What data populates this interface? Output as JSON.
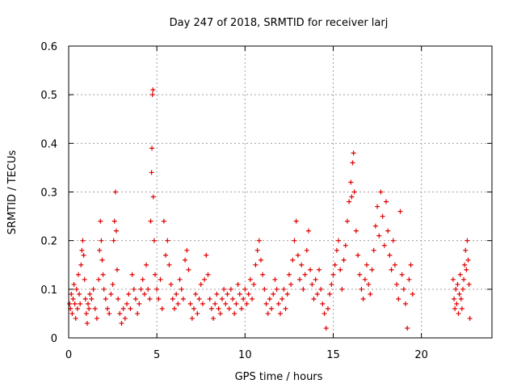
{
  "chart_data": {
    "type": "scatter",
    "title": "Day 247 of 2018, SRMTID for receiver larj",
    "xlabel": "GPS time / hours",
    "ylabel": "SRMTID / TECUs",
    "xlim": [
      0,
      24
    ],
    "ylim": [
      0,
      0.6
    ],
    "xticks": [
      0,
      5,
      10,
      15,
      20
    ],
    "yticks": [
      0,
      0.1,
      0.2,
      0.3,
      0.4,
      0.5,
      0.6
    ],
    "xtick_labels": [
      "0",
      "5",
      "10",
      "15",
      "20"
    ],
    "ytick_labels": [
      "0",
      "0.1",
      "0.2",
      "0.3",
      "0.4",
      "0.5",
      "0.6"
    ],
    "grid": true,
    "marker": "plus",
    "color": "#e00000",
    "series": [
      {
        "name": "SRMTID",
        "points": [
          [
            0.05,
            0.07
          ],
          [
            0.1,
            0.06
          ],
          [
            0.15,
            0.09
          ],
          [
            0.2,
            0.05
          ],
          [
            0.25,
            0.08
          ],
          [
            0.3,
            0.11
          ],
          [
            0.35,
            0.07
          ],
          [
            0.4,
            0.04
          ],
          [
            0.45,
            0.1
          ],
          [
            0.5,
            0.06
          ],
          [
            0.55,
            0.13
          ],
          [
            0.6,
            0.09
          ],
          [
            0.65,
            0.07
          ],
          [
            0.7,
            0.15
          ],
          [
            0.75,
            0.18
          ],
          [
            0.8,
            0.2
          ],
          [
            0.85,
            0.17
          ],
          [
            0.9,
            0.12
          ],
          [
            0.95,
            0.08
          ],
          [
            1.0,
            0.05
          ],
          [
            1.05,
            0.03
          ],
          [
            1.1,
            0.07
          ],
          [
            1.15,
            0.06
          ],
          [
            1.2,
            0.09
          ],
          [
            1.3,
            0.08
          ],
          [
            1.4,
            0.1
          ],
          [
            1.5,
            0.06
          ],
          [
            1.6,
            0.04
          ],
          [
            1.7,
            0.12
          ],
          [
            1.75,
            0.18
          ],
          [
            1.8,
            0.24
          ],
          [
            1.85,
            0.2
          ],
          [
            1.9,
            0.16
          ],
          [
            1.95,
            0.13
          ],
          [
            2.0,
            0.1
          ],
          [
            2.1,
            0.08
          ],
          [
            2.2,
            0.06
          ],
          [
            2.3,
            0.05
          ],
          [
            2.4,
            0.09
          ],
          [
            2.5,
            0.11
          ],
          [
            2.55,
            0.2
          ],
          [
            2.6,
            0.24
          ],
          [
            2.65,
            0.3
          ],
          [
            2.7,
            0.22
          ],
          [
            2.75,
            0.14
          ],
          [
            2.8,
            0.08
          ],
          [
            2.9,
            0.05
          ],
          [
            3.0,
            0.03
          ],
          [
            3.1,
            0.06
          ],
          [
            3.2,
            0.04
          ],
          [
            3.3,
            0.07
          ],
          [
            3.4,
            0.09
          ],
          [
            3.5,
            0.06
          ],
          [
            3.6,
            0.13
          ],
          [
            3.7,
            0.1
          ],
          [
            3.8,
            0.08
          ],
          [
            3.9,
            0.05
          ],
          [
            4.0,
            0.07
          ],
          [
            4.1,
            0.1
          ],
          [
            4.2,
            0.12
          ],
          [
            4.3,
            0.09
          ],
          [
            4.4,
            0.15
          ],
          [
            4.5,
            0.1
          ],
          [
            4.6,
            0.08
          ],
          [
            4.65,
            0.24
          ],
          [
            4.7,
            0.34
          ],
          [
            4.72,
            0.39
          ],
          [
            4.75,
            0.5
          ],
          [
            4.78,
            0.51
          ],
          [
            4.8,
            0.29
          ],
          [
            4.85,
            0.2
          ],
          [
            4.9,
            0.13
          ],
          [
            5.0,
            0.1
          ],
          [
            5.1,
            0.08
          ],
          [
            5.2,
            0.12
          ],
          [
            5.3,
            0.06
          ],
          [
            5.4,
            0.24
          ],
          [
            5.5,
            0.17
          ],
          [
            5.6,
            0.2
          ],
          [
            5.7,
            0.15
          ],
          [
            5.8,
            0.11
          ],
          [
            5.9,
            0.08
          ],
          [
            6.0,
            0.06
          ],
          [
            6.1,
            0.09
          ],
          [
            6.2,
            0.07
          ],
          [
            6.3,
            0.12
          ],
          [
            6.4,
            0.1
          ],
          [
            6.5,
            0.08
          ],
          [
            6.6,
            0.16
          ],
          [
            6.7,
            0.18
          ],
          [
            6.8,
            0.14
          ],
          [
            6.9,
            0.07
          ],
          [
            7.0,
            0.04
          ],
          [
            7.1,
            0.06
          ],
          [
            7.2,
            0.09
          ],
          [
            7.3,
            0.05
          ],
          [
            7.4,
            0.08
          ],
          [
            7.5,
            0.11
          ],
          [
            7.6,
            0.07
          ],
          [
            7.7,
            0.12
          ],
          [
            7.8,
            0.17
          ],
          [
            7.9,
            0.13
          ],
          [
            8.0,
            0.08
          ],
          [
            8.1,
            0.06
          ],
          [
            8.2,
            0.04
          ],
          [
            8.3,
            0.07
          ],
          [
            8.4,
            0.09
          ],
          [
            8.5,
            0.06
          ],
          [
            8.6,
            0.05
          ],
          [
            8.7,
            0.08
          ],
          [
            8.8,
            0.1
          ],
          [
            8.9,
            0.07
          ],
          [
            9.0,
            0.09
          ],
          [
            9.1,
            0.06
          ],
          [
            9.2,
            0.1
          ],
          [
            9.3,
            0.08
          ],
          [
            9.4,
            0.05
          ],
          [
            9.5,
            0.07
          ],
          [
            9.6,
            0.11
          ],
          [
            9.7,
            0.09
          ],
          [
            9.8,
            0.06
          ],
          [
            9.9,
            0.08
          ],
          [
            10.0,
            0.1
          ],
          [
            10.1,
            0.07
          ],
          [
            10.2,
            0.09
          ],
          [
            10.3,
            0.12
          ],
          [
            10.4,
            0.08
          ],
          [
            10.5,
            0.11
          ],
          [
            10.6,
            0.15
          ],
          [
            10.7,
            0.18
          ],
          [
            10.8,
            0.2
          ],
          [
            10.9,
            0.16
          ],
          [
            11.0,
            0.13
          ],
          [
            11.1,
            0.1
          ],
          [
            11.2,
            0.07
          ],
          [
            11.3,
            0.05
          ],
          [
            11.4,
            0.08
          ],
          [
            11.5,
            0.06
          ],
          [
            11.6,
            0.09
          ],
          [
            11.7,
            0.12
          ],
          [
            11.8,
            0.1
          ],
          [
            11.9,
            0.07
          ],
          [
            12.0,
            0.05
          ],
          [
            12.1,
            0.08
          ],
          [
            12.2,
            0.1
          ],
          [
            12.3,
            0.06
          ],
          [
            12.4,
            0.09
          ],
          [
            12.5,
            0.13
          ],
          [
            12.6,
            0.11
          ],
          [
            12.7,
            0.16
          ],
          [
            12.8,
            0.2
          ],
          [
            12.9,
            0.24
          ],
          [
            13.0,
            0.17
          ],
          [
            13.1,
            0.12
          ],
          [
            13.2,
            0.15
          ],
          [
            13.3,
            0.1
          ],
          [
            13.4,
            0.13
          ],
          [
            13.5,
            0.18
          ],
          [
            13.6,
            0.22
          ],
          [
            13.7,
            0.14
          ],
          [
            13.8,
            0.11
          ],
          [
            13.9,
            0.08
          ],
          [
            14.0,
            0.12
          ],
          [
            14.1,
            0.09
          ],
          [
            14.2,
            0.14
          ],
          [
            14.3,
            0.1
          ],
          [
            14.4,
            0.07
          ],
          [
            14.5,
            0.05
          ],
          [
            14.6,
            0.02
          ],
          [
            14.7,
            0.06
          ],
          [
            14.8,
            0.09
          ],
          [
            14.9,
            0.11
          ],
          [
            15.0,
            0.13
          ],
          [
            15.1,
            0.15
          ],
          [
            15.2,
            0.18
          ],
          [
            15.3,
            0.2
          ],
          [
            15.4,
            0.14
          ],
          [
            15.5,
            0.1
          ],
          [
            15.6,
            0.16
          ],
          [
            15.7,
            0.19
          ],
          [
            15.8,
            0.24
          ],
          [
            15.9,
            0.28
          ],
          [
            16.0,
            0.32
          ],
          [
            16.05,
            0.29
          ],
          [
            16.1,
            0.36
          ],
          [
            16.15,
            0.38
          ],
          [
            16.2,
            0.3
          ],
          [
            16.3,
            0.22
          ],
          [
            16.4,
            0.17
          ],
          [
            16.5,
            0.13
          ],
          [
            16.6,
            0.1
          ],
          [
            16.7,
            0.08
          ],
          [
            16.8,
            0.12
          ],
          [
            16.9,
            0.15
          ],
          [
            17.0,
            0.11
          ],
          [
            17.1,
            0.09
          ],
          [
            17.2,
            0.14
          ],
          [
            17.3,
            0.18
          ],
          [
            17.4,
            0.23
          ],
          [
            17.5,
            0.27
          ],
          [
            17.6,
            0.21
          ],
          [
            17.7,
            0.3
          ],
          [
            17.8,
            0.25
          ],
          [
            17.9,
            0.19
          ],
          [
            18.0,
            0.28
          ],
          [
            18.1,
            0.22
          ],
          [
            18.2,
            0.17
          ],
          [
            18.3,
            0.14
          ],
          [
            18.4,
            0.2
          ],
          [
            18.5,
            0.15
          ],
          [
            18.6,
            0.11
          ],
          [
            18.7,
            0.08
          ],
          [
            18.8,
            0.26
          ],
          [
            18.9,
            0.13
          ],
          [
            19.0,
            0.1
          ],
          [
            19.1,
            0.07
          ],
          [
            19.2,
            0.02
          ],
          [
            19.3,
            0.12
          ],
          [
            19.4,
            0.15
          ],
          [
            19.5,
            0.09
          ],
          [
            21.8,
            0.12
          ],
          [
            21.85,
            0.08
          ],
          [
            21.9,
            0.06
          ],
          [
            21.95,
            0.1
          ],
          [
            22.0,
            0.07
          ],
          [
            22.05,
            0.11
          ],
          [
            22.1,
            0.05
          ],
          [
            22.15,
            0.09
          ],
          [
            22.2,
            0.13
          ],
          [
            22.25,
            0.08
          ],
          [
            22.3,
            0.06
          ],
          [
            22.35,
            0.1
          ],
          [
            22.4,
            0.12
          ],
          [
            22.45,
            0.15
          ],
          [
            22.5,
            0.18
          ],
          [
            22.55,
            0.14
          ],
          [
            22.6,
            0.2
          ],
          [
            22.65,
            0.16
          ],
          [
            22.7,
            0.11
          ],
          [
            22.75,
            0.04
          ]
        ]
      }
    ]
  }
}
